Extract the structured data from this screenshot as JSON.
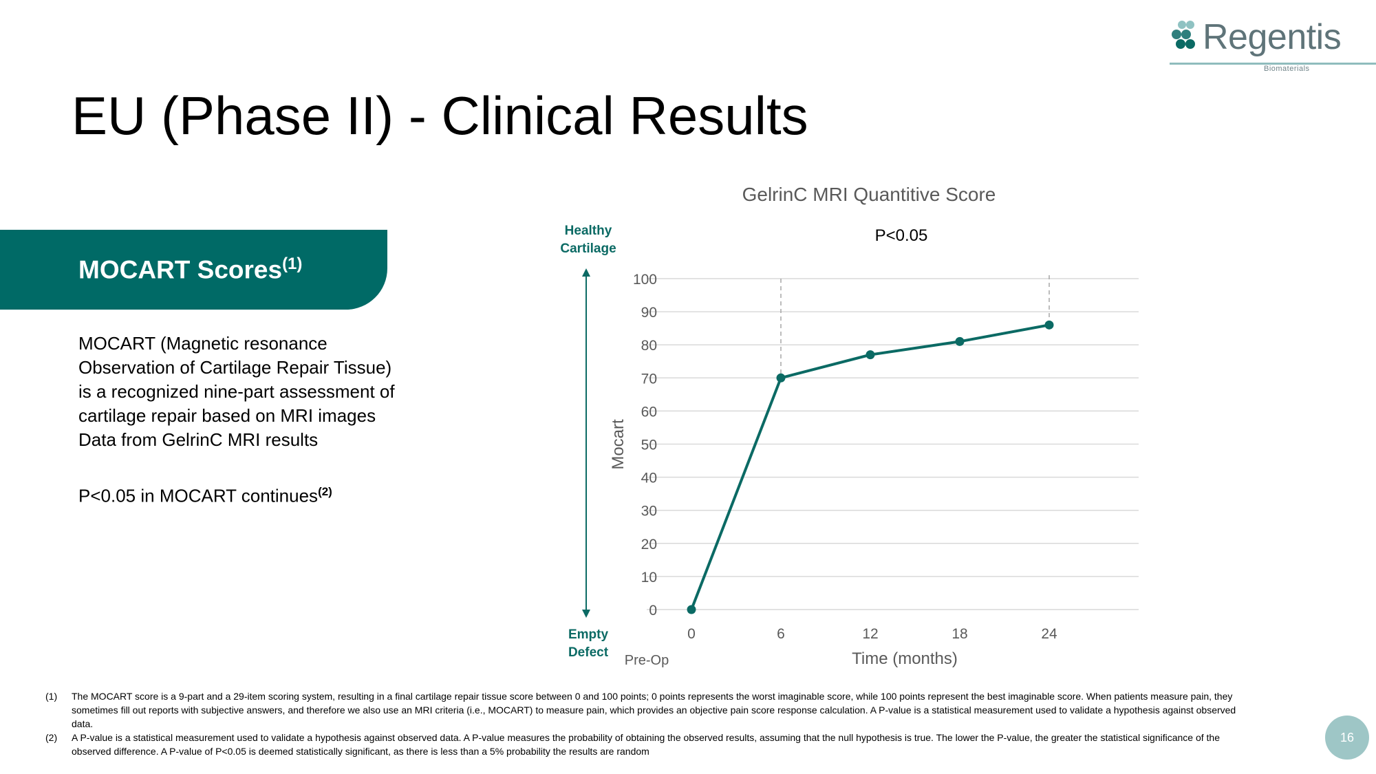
{
  "logo": {
    "name": "Regentis",
    "sub": "Biomaterials"
  },
  "slide_title": "EU (Phase II) - Clinical Results",
  "banner": {
    "label": "MOCART Scores",
    "sup": "(1)"
  },
  "body": {
    "para1": "MOCART (Magnetic resonance Observation of Cartilage Repair Tissue) is  a recognized nine-part assessment of cartilage repair based on MRI images",
    "para2": "Data from GelrinC MRI results",
    "para3": "P<0.05 in MOCART continues",
    "para3_sup": "(2)"
  },
  "arrow_labels": {
    "top_line1": "Healthy",
    "top_line2": "Cartilage",
    "bottom_line1": "Empty",
    "bottom_line2": "Defect"
  },
  "chart_data": {
    "type": "line",
    "title": "GelrinC MRI Quantitive Score",
    "xlabel": "Time (months)",
    "ylabel": "Mocart",
    "x": [
      0,
      6,
      12,
      18,
      24
    ],
    "series": [
      {
        "values": [
          0,
          70,
          77,
          81,
          86
        ]
      }
    ],
    "ylim": [
      0,
      100
    ],
    "yticks": [
      0,
      10,
      20,
      30,
      40,
      50,
      60,
      70,
      80,
      90,
      100
    ],
    "x_extra_label": "Pre-Op",
    "annotation": "P<0.05",
    "annotation_span": [
      6,
      24
    ],
    "grid": true,
    "line_color": "#0b6a64"
  },
  "footnotes": [
    {
      "num": "(1)",
      "text": "The MOCART score is a 9-part and a 29-item scoring system,  resulting in a final cartilage repair tissue score between 0 and 100 points; 0 points represents the worst imaginable score, while 100 points represent the best imaginable score. When patients measure pain, they sometimes fill out reports with subjective answers, and therefore we also use an MRI criteria (i.e., MOCART) to measure pain, which provides an objective pain score response calculation. A P-value is a statistical measurement used to validate a hypothesis against observed data."
    },
    {
      "num": "(2)",
      "text": "A P-value is a statistical measurement used to validate a hypothesis against observed data. A P-value measures the probability of obtaining the observed results, assuming that the null hypothesis is true. The lower the P-value, the greater the statistical significance of the observed difference. A P-value of P<0.05 is deemed statistically significant, as there is less than a 5% probability the results are random"
    }
  ],
  "page_number": "16"
}
